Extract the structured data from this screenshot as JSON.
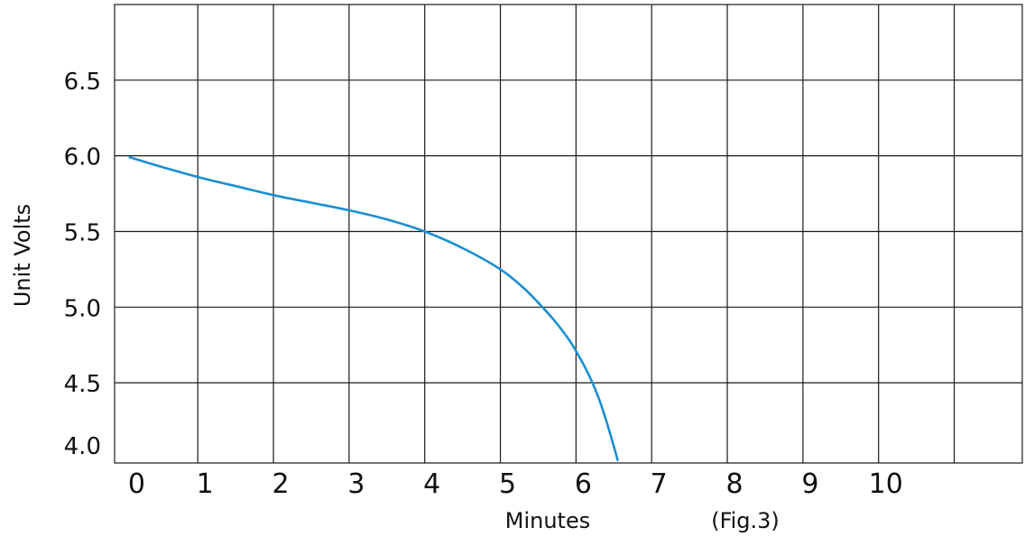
{
  "chart_data": {
    "type": "line",
    "xlabel": "Minutes",
    "ylabel": "Unit Volts",
    "caption": "(Fig.3)",
    "x_ticks": [
      "0",
      "1",
      "2",
      "3",
      "4",
      "5",
      "6",
      "7",
      "8",
      "9",
      "10"
    ],
    "y_ticks": [
      "4.0",
      "4.5",
      "5.0",
      "5.5",
      "6.0",
      "6.5"
    ],
    "xlim": [
      -0.1,
      11.9
    ],
    "ylim": [
      3.97,
      7.0
    ],
    "grid": true,
    "series_color": "#1a8fd1",
    "series": [
      {
        "x": [
          0.1,
          0.5,
          1.0,
          1.5,
          2.0,
          2.5,
          3.0,
          3.5,
          4.0,
          4.5,
          5.0,
          5.3,
          5.5,
          5.7,
          5.9,
          6.0,
          6.1,
          6.2,
          6.3,
          6.4,
          6.5,
          6.55
        ],
        "y": [
          5.99,
          5.93,
          5.86,
          5.8,
          5.74,
          5.69,
          5.64,
          5.58,
          5.5,
          5.39,
          5.25,
          5.13,
          5.03,
          4.92,
          4.79,
          4.71,
          4.62,
          4.52,
          4.4,
          4.25,
          4.08,
          3.99
        ]
      }
    ]
  }
}
